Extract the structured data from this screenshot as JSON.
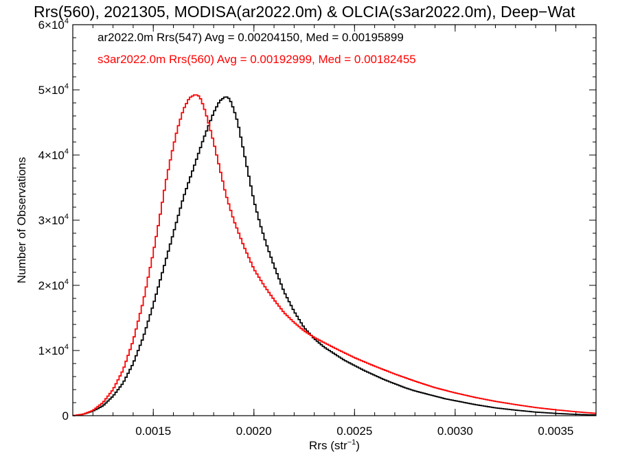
{
  "chart_data": {
    "type": "line",
    "title": "Rrs(560), 2021305, MODISA(ar2022.0m) & OLCIA(s3ar2022.0m), Deep−Wat",
    "xlabel": "Rrs (str",
    "xlabel_superscript": "−1",
    "xlabel_close": ")",
    "ylabel": "Number of Observations",
    "xlim": [
      0.0011,
      0.0037
    ],
    "ylim": [
      0,
      60000
    ],
    "x_ticks": [
      0.0015,
      0.002,
      0.0025,
      0.003,
      0.0035
    ],
    "x_tick_labels": [
      "0.0015",
      "0.0020",
      "0.0025",
      "0.0030",
      "0.0035"
    ],
    "y_ticks": [
      0,
      10000,
      20000,
      30000,
      40000,
      50000,
      60000
    ],
    "y_tick_labels": [
      {
        "base": "0",
        "exp": ""
      },
      {
        "base": "1×10",
        "exp": "4"
      },
      {
        "base": "2×10",
        "exp": "4"
      },
      {
        "base": "3×10",
        "exp": "4"
      },
      {
        "base": "4×10",
        "exp": "4"
      },
      {
        "base": "5×10",
        "exp": "4"
      },
      {
        "base": "6×10",
        "exp": "4"
      }
    ],
    "grid": false,
    "legend_position": "top-left",
    "step_style": "histogram",
    "series": [
      {
        "name": "ar2022.0m Rrs(547) Avg = 0.00204150, Med = 0.00195899",
        "color": "#000000",
        "x": [
          0.0011,
          0.00115,
          0.0012,
          0.00125,
          0.0013,
          0.00135,
          0.0014,
          0.00145,
          0.0015,
          0.00155,
          0.0016,
          0.00165,
          0.0017,
          0.00175,
          0.0018,
          0.00183,
          0.00186,
          0.00188,
          0.0019,
          0.00192,
          0.00194,
          0.00196,
          0.00198,
          0.002,
          0.00203,
          0.00206,
          0.0021,
          0.00215,
          0.0022,
          0.00225,
          0.0023,
          0.00235,
          0.0024,
          0.00245,
          0.0025,
          0.00255,
          0.0026,
          0.00265,
          0.0027,
          0.00275,
          0.0028,
          0.00285,
          0.0029,
          0.00295,
          0.003,
          0.00305,
          0.0031,
          0.00315,
          0.0032,
          0.0033,
          0.0034,
          0.0035,
          0.0036,
          0.0037
        ],
        "y": [
          0,
          200,
          700,
          1500,
          3000,
          5000,
          8000,
          12000,
          17000,
          22500,
          28000,
          33500,
          38000,
          42500,
          46500,
          48300,
          49000,
          48600,
          47000,
          45000,
          42000,
          39000,
          36000,
          33000,
          29500,
          26500,
          23000,
          19000,
          16000,
          13500,
          11800,
          10500,
          9500,
          8500,
          7700,
          6900,
          6200,
          5500,
          4900,
          4300,
          3800,
          3400,
          3000,
          2600,
          2300,
          2000,
          1700,
          1450,
          1200,
          850,
          550,
          350,
          200,
          100
        ]
      },
      {
        "name": "s3ar2022.0m Rrs(560) Avg = 0.00192999, Med = 0.00182455",
        "color": "#ff0000",
        "x": [
          0.0011,
          0.00115,
          0.0012,
          0.00125,
          0.0013,
          0.00135,
          0.0014,
          0.00145,
          0.0015,
          0.00153,
          0.00156,
          0.00159,
          0.00162,
          0.00165,
          0.00168,
          0.00171,
          0.00173,
          0.00175,
          0.00177,
          0.0018,
          0.00183,
          0.00186,
          0.0019,
          0.00195,
          0.002,
          0.00205,
          0.0021,
          0.00215,
          0.0022,
          0.00225,
          0.0023,
          0.0024,
          0.0025,
          0.0026,
          0.0027,
          0.0028,
          0.0029,
          0.003,
          0.0031,
          0.0032,
          0.0033,
          0.0034,
          0.0035,
          0.0036,
          0.0037
        ],
        "y": [
          0,
          200,
          800,
          2000,
          4000,
          7000,
          11500,
          17500,
          25000,
          30000,
          35500,
          40000,
          44000,
          47000,
          48800,
          49300,
          49000,
          47500,
          45500,
          42000,
          38000,
          34000,
          30000,
          26000,
          22500,
          20000,
          17800,
          15800,
          14300,
          13000,
          12000,
          10400,
          8900,
          7600,
          6400,
          5300,
          4300,
          3500,
          2800,
          2200,
          1700,
          1250,
          900,
          600,
          350
        ]
      }
    ]
  }
}
